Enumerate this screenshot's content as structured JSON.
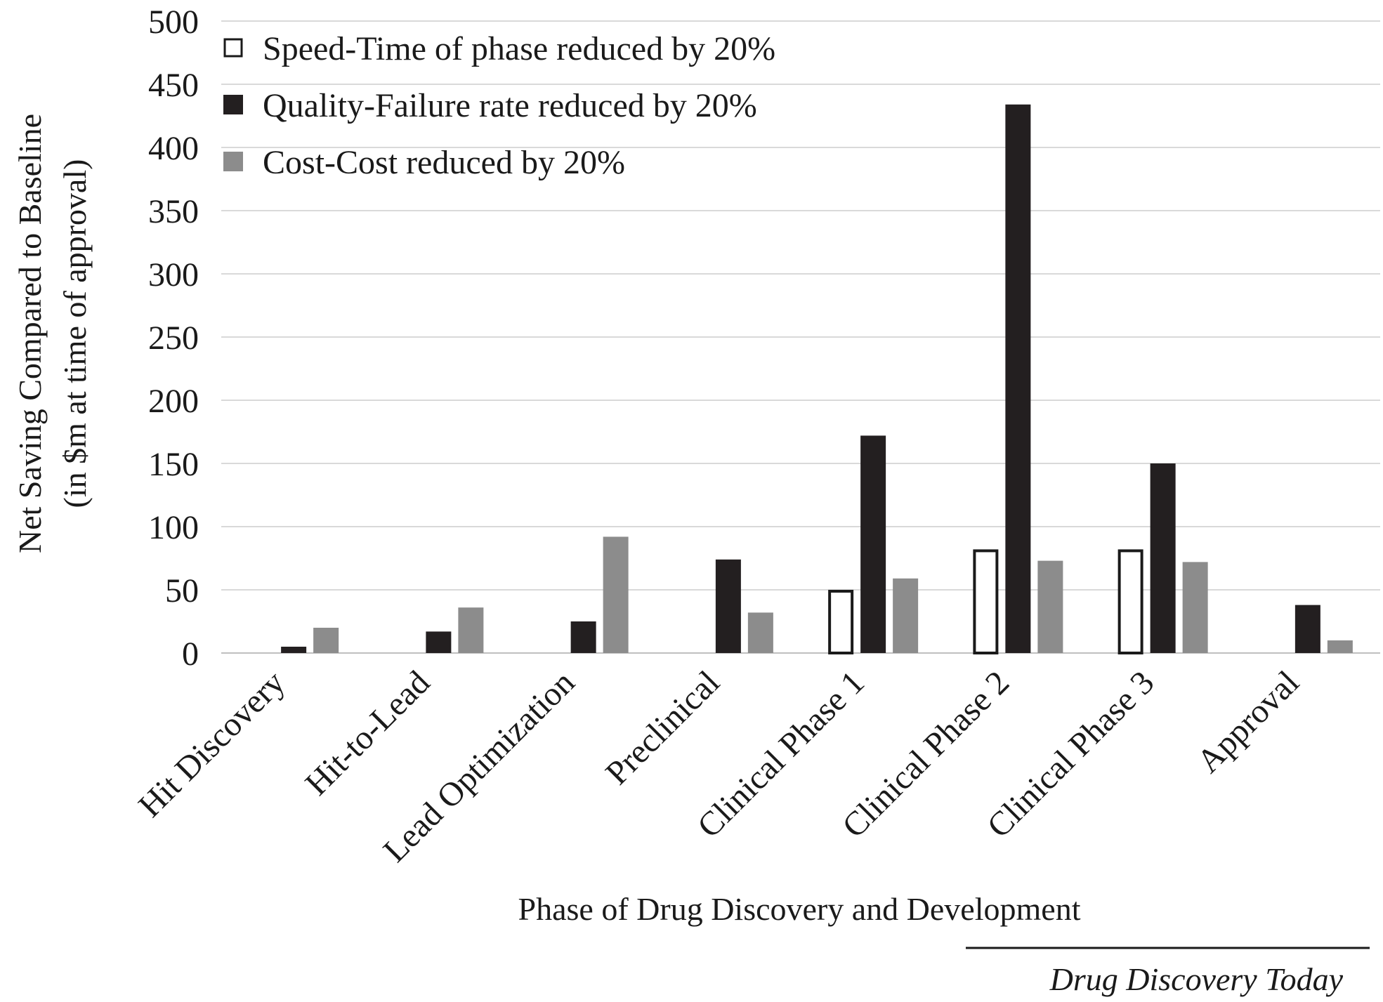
{
  "chart_data": {
    "type": "bar",
    "xlabel": "Phase of Drug Discovery and Development",
    "ylabel": "Net Saving Compared to Baseline",
    "ylabel_sub": "(in $m at time of approval)",
    "ylim": [
      0,
      500
    ],
    "yticks": [
      0,
      50,
      100,
      150,
      200,
      250,
      300,
      350,
      400,
      450,
      500
    ],
    "ytick_labels": [
      "0",
      "50",
      "100",
      "150",
      "200",
      "250",
      "300",
      "350",
      "400",
      "450",
      "500"
    ],
    "grid": true,
    "legend_position": "top-left",
    "categories": [
      "Hit Discovery",
      "Hit-to-Lead",
      "Lead Optimization",
      "Preclinical",
      "Clinical Phase 1",
      "Clinical Phase 2",
      "Clinical Phase 3",
      "Approval"
    ],
    "series": [
      {
        "name": "Speed-Time of phase reduced by 20%",
        "values": [
          0,
          0,
          0,
          0,
          50,
          82,
          82,
          0
        ],
        "fill": "#ffffff",
        "stroke": "#1a1a1a"
      },
      {
        "name": "Quality-Failure rate reduced by 20%",
        "values": [
          5,
          17,
          25,
          74,
          172,
          434,
          150,
          38
        ],
        "fill": "#231f20",
        "stroke": "none"
      },
      {
        "name": "Cost-Cost reduced by 20%",
        "values": [
          20,
          36,
          92,
          32,
          59,
          73,
          72,
          10
        ],
        "fill": "#8c8c8c",
        "stroke": "none"
      }
    ],
    "source": "Drug Discovery Today"
  }
}
